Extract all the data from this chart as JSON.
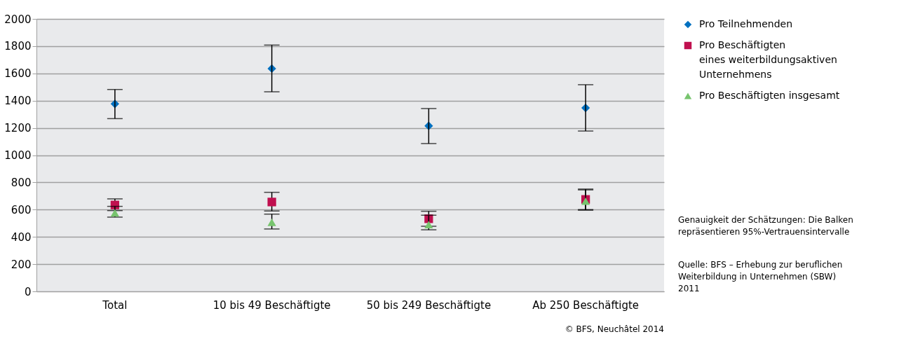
{
  "chart_data": {
    "type": "scatter",
    "categories": [
      "Total",
      "10 bis 49 Beschäftigte",
      "50 bis 249 Beschäftigte",
      "Ab 250 Beschäftigte"
    ],
    "series": [
      {
        "name": "Pro Teilnehmenden",
        "color": "#0070c0",
        "marker": "diamond",
        "values": [
          1376,
          1635,
          1215,
          1347
        ],
        "errors": [
          [
            1268,
            1482
          ],
          [
            1465,
            1808
          ],
          [
            1085,
            1342
          ],
          [
            1177,
            1517
          ]
        ]
      },
      {
        "name": "Pro Beschäftigten\neines weiterbildungsaktiven\nUnternehmens",
        "color": "#c0104f",
        "marker": "square",
        "values": [
          634,
          656,
          533,
          675
        ],
        "errors": [
          [
            593,
            679
          ],
          [
            590,
            727
          ],
          [
            478,
            588
          ],
          [
            596,
            751
          ]
        ]
      },
      {
        "name": "Pro Beschäftigten insgesamt",
        "color": "#77c46e",
        "marker": "triangle",
        "values": [
          576,
          507,
          490,
          662
        ],
        "errors": [
          [
            545,
            624
          ],
          [
            458,
            567
          ],
          [
            452,
            559
          ],
          [
            600,
            745
          ]
        ]
      }
    ],
    "ylim": [
      0,
      2000
    ],
    "yticks": [
      0,
      200,
      400,
      600,
      800,
      1000,
      1200,
      1400,
      1600,
      1800,
      2000
    ],
    "grid": "y",
    "legend": "right",
    "annotations": [
      "Genauigkeit der Schätzungen: Die Balken\nrepräsentieren 95%-Vertrauensintervalle",
      "Quelle: BFS – Erhebung zur beruflichen\nWeiterbildung in Unternehmen (SBW)\n2011",
      "© BFS, Neuchâtel 2014"
    ]
  }
}
